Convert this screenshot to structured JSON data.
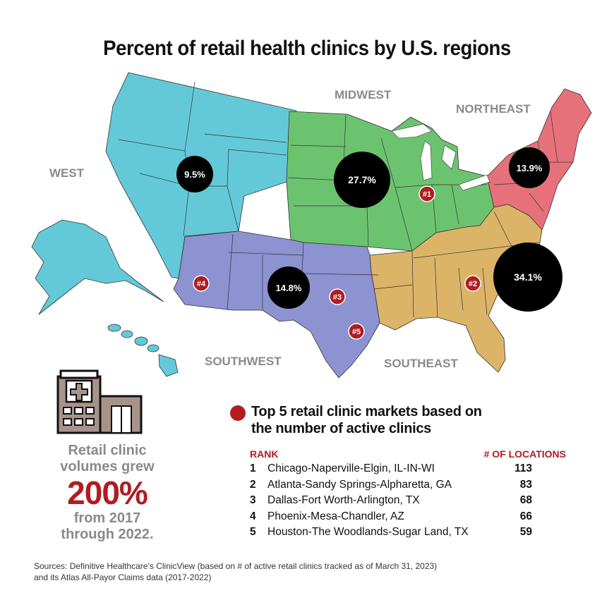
{
  "title": "Percent of retail health clinics by U.S. regions",
  "colors": {
    "west": "#63c9d9",
    "midwest": "#6cc36f",
    "northeast": "#e6717a",
    "southeast": "#dcb467",
    "southwest": "#8d92d1",
    "bubble": "#000000",
    "rank_marker": "#b01c21",
    "accent_red": "#b01c21",
    "label_gray": "#8a8a8a"
  },
  "regions": [
    {
      "id": "west",
      "label": "WEST",
      "share": 9.5,
      "share_label": "9.5%"
    },
    {
      "id": "midwest",
      "label": "MIDWEST",
      "share": 27.7,
      "share_label": "27.7%"
    },
    {
      "id": "northeast",
      "label": "NORTHEAST",
      "share": 13.9,
      "share_label": "13.9%"
    },
    {
      "id": "southwest",
      "label": "SOUTHWEST",
      "share": 14.8,
      "share_label": "14.8%"
    },
    {
      "id": "southeast",
      "label": "SOUTHEAST",
      "share": 34.1,
      "share_label": "34.1%"
    }
  ],
  "markers": [
    "#1",
    "#2",
    "#3",
    "#4",
    "#5"
  ],
  "legend": {
    "title_line1": "Top 5 retail clinic markets based on",
    "title_line2": "the number of active clinics",
    "rank_header": "RANK",
    "count_header": "# OF LOCATIONS"
  },
  "markets": [
    {
      "rank": "1",
      "metro": "Chicago-Naperville-Elgin, IL-IN-WI",
      "count": "113"
    },
    {
      "rank": "2",
      "metro": "Atlanta-Sandy Springs-Alpharetta, GA",
      "count": "83"
    },
    {
      "rank": "3",
      "metro": "Dallas-Fort Worth-Arlington, TX",
      "count": "68"
    },
    {
      "rank": "4",
      "metro": "Phoenix-Mesa-Chandler, AZ",
      "count": "66"
    },
    {
      "rank": "5",
      "metro": "Houston-The Woodlands-Sugar Land, TX",
      "count": "59"
    }
  ],
  "growth": {
    "line1": "Retail clinic",
    "line2": "volumes grew",
    "big": "200%",
    "line3": "from 2017",
    "line4": "through 2022."
  },
  "icons": {
    "clinic": "clinic-building-icon"
  },
  "sources": {
    "line1": "Sources: Definitive Healthcare’s ClinicView (based on # of active retail clinics tracked as of March 31, 2023)",
    "line2": "and its Atlas All-Payor Claims data (2017-2022)"
  }
}
